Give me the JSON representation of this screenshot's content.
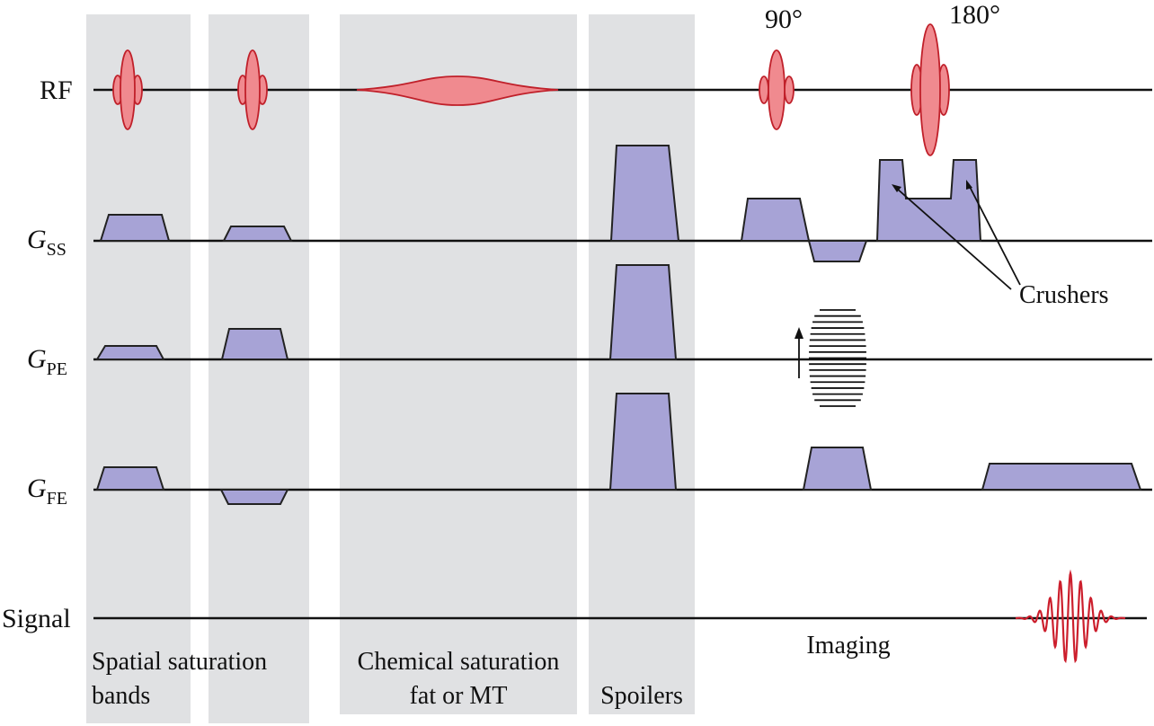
{
  "rows": {
    "rf": "RF",
    "g_ss": {
      "main": "G",
      "sub": "SS"
    },
    "g_pe": {
      "main": "G",
      "sub": "PE"
    },
    "g_fe": {
      "main": "G",
      "sub": "FE"
    },
    "signal": "Signal"
  },
  "pulse_labels": {
    "p90": "90°",
    "p180": "180°"
  },
  "annotations": {
    "crushers": "Crushers"
  },
  "sections": {
    "spatial_line1": "Spatial saturation",
    "spatial_line2": "bands",
    "chemical_line1": "Chemical saturation",
    "chemical_line2": "fat or MT",
    "spoilers": "Spoilers",
    "imaging": "Imaging"
  },
  "colors": {
    "rf_fill": "#f08a8f",
    "rf_stroke": "#c0202a",
    "gradient_fill": "#a7a3d6",
    "band_fill": "#e0e1e3",
    "signal": "#cc1f2d"
  }
}
